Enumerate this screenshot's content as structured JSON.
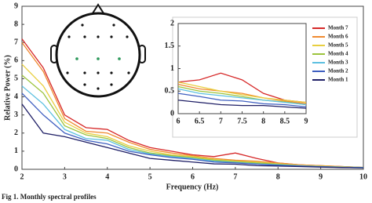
{
  "chart_data": [
    {
      "type": "line",
      "xlabel": "Frequency (Hz)",
      "ylabel": "Relative Power (%)",
      "x": [
        2,
        2.5,
        3,
        3.5,
        4,
        4.5,
        5,
        5.5,
        6,
        6.5,
        7,
        7.5,
        8,
        8.5,
        9,
        9.5,
        10
      ],
      "xlim": [
        2,
        10
      ],
      "xticks": [
        2,
        3,
        4,
        5,
        6,
        7,
        8,
        9,
        10
      ],
      "ylim": [
        0,
        9
      ],
      "yticks": [
        0,
        1,
        2,
        3,
        4,
        5,
        6,
        7,
        8,
        9
      ],
      "series": [
        {
          "color": "#d62828",
          "values": [
            7.2,
            5.6,
            3.0,
            2.3,
            2.2,
            1.6,
            1.2,
            1.0,
            0.8,
            0.7,
            0.9,
            0.6,
            0.35,
            0.25,
            0.2,
            0.15,
            0.1
          ]
        },
        {
          "color": "#f08a30",
          "values": [
            7.0,
            5.4,
            2.8,
            2.1,
            2.0,
            1.5,
            1.1,
            0.9,
            0.75,
            0.6,
            0.5,
            0.45,
            0.35,
            0.25,
            0.2,
            0.15,
            0.1
          ]
        },
        {
          "color": "#e8cf40",
          "values": [
            5.8,
            4.6,
            2.6,
            2.0,
            1.8,
            1.3,
            1.0,
            0.8,
            0.7,
            0.55,
            0.45,
            0.4,
            0.3,
            0.22,
            0.18,
            0.14,
            0.1
          ]
        },
        {
          "color": "#9cc43c",
          "values": [
            5.2,
            4.2,
            2.4,
            1.9,
            1.7,
            1.2,
            0.9,
            0.75,
            0.65,
            0.5,
            0.42,
            0.35,
            0.28,
            0.2,
            0.16,
            0.12,
            0.1
          ]
        },
        {
          "color": "#5cc0e0",
          "values": [
            4.6,
            3.6,
            2.2,
            1.7,
            1.6,
            1.1,
            0.85,
            0.7,
            0.6,
            0.45,
            0.38,
            0.3,
            0.25,
            0.2,
            0.15,
            0.12,
            0.1
          ]
        },
        {
          "color": "#3f5fc0",
          "values": [
            4.2,
            3.0,
            2.0,
            1.6,
            1.4,
            1.0,
            0.8,
            0.65,
            0.55,
            0.4,
            0.35,
            0.28,
            0.22,
            0.18,
            0.14,
            0.1,
            0.08
          ]
        },
        {
          "color": "#1f1f66",
          "values": [
            3.6,
            2.0,
            1.8,
            1.5,
            1.2,
            0.9,
            0.6,
            0.5,
            0.4,
            0.3,
            0.28,
            0.2,
            0.18,
            0.15,
            0.12,
            0.1,
            0.08
          ]
        }
      ]
    },
    {
      "type": "line",
      "legend": "upper right",
      "x": [
        6,
        6.5,
        7,
        7.5,
        8,
        8.5,
        9
      ],
      "xlim": [
        6,
        9
      ],
      "xticks": [
        6,
        6.5,
        7,
        7.5,
        8,
        8.5,
        9
      ],
      "ylim": [
        0,
        2
      ],
      "yticks": [
        0,
        0.5,
        1,
        1.5,
        2
      ],
      "series": [
        {
          "name": "Month 7",
          "color": "#d62828",
          "values": [
            0.7,
            0.75,
            0.9,
            0.75,
            0.45,
            0.3,
            0.25
          ]
        },
        {
          "name": "Month 6",
          "color": "#f08a30",
          "values": [
            0.65,
            0.55,
            0.5,
            0.45,
            0.35,
            0.28,
            0.22
          ]
        },
        {
          "name": "Month 5",
          "color": "#e8cf40",
          "values": [
            0.7,
            0.6,
            0.5,
            0.42,
            0.35,
            0.3,
            0.25
          ]
        },
        {
          "name": "Month 4",
          "color": "#9cc43c",
          "values": [
            0.6,
            0.5,
            0.45,
            0.38,
            0.3,
            0.26,
            0.2
          ]
        },
        {
          "name": "Month 3",
          "color": "#5cc0e0",
          "values": [
            0.55,
            0.45,
            0.4,
            0.35,
            0.3,
            0.25,
            0.2
          ]
        },
        {
          "name": "Month 2",
          "color": "#3f5fc0",
          "values": [
            0.45,
            0.38,
            0.3,
            0.28,
            0.22,
            0.2,
            0.15
          ]
        },
        {
          "name": "Month 1",
          "color": "#1f1f66",
          "values": [
            0.3,
            0.25,
            0.2,
            0.18,
            0.18,
            0.15,
            0.12
          ]
        }
      ]
    }
  ],
  "caption": "Fig 1. Monthly spectral profiles"
}
